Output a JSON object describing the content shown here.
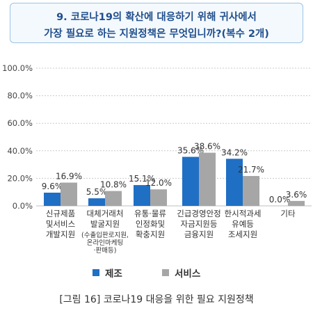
{
  "header": {
    "title_line1": "9. 코로나19의 확산에 대응하기 위해 귀사에서",
    "title_line2": "가장 필요로 하는 지원정책은 무엇입니까?(복수 2개)"
  },
  "caption": "[그림 16] 코로나19 대응을 위한 필요 지원정책",
  "colors": {
    "manufacturing": "#1f6fc5",
    "service": "#a6a6a6",
    "grid": "#c9c9c9"
  },
  "chart_data": {
    "type": "bar",
    "ylim": [
      0,
      100
    ],
    "yticks": [
      "0.0%",
      "20.0%",
      "40.0%",
      "60.0%",
      "80.0%",
      "100.0%"
    ],
    "grid": true,
    "legend_position": "bottom",
    "categories": [
      [
        "신규제품",
        "및서비스",
        "개발지원"
      ],
      [
        "대체거래처",
        "발굴지원",
        "(수출입판로지원,",
        "온라인마케팅",
        "·판매등)"
      ],
      [
        "유통·물류",
        "인정화및",
        "확충지원"
      ],
      [
        "긴급경영안정",
        "자금지원등",
        "금융지원"
      ],
      [
        "한시적과세",
        "유예등",
        "조세지원"
      ],
      [
        "기타"
      ]
    ],
    "series": [
      {
        "name": "제조",
        "values": [
          9.6,
          5.5,
          15.1,
          35.6,
          34.2,
          0.0
        ],
        "labels": [
          "9.6%",
          "5.5%",
          "15.1%",
          "35.6%",
          "34.2%",
          "0.0%"
        ]
      },
      {
        "name": "서비스",
        "values": [
          16.9,
          10.8,
          12.0,
          38.6,
          21.7,
          3.6
        ],
        "labels": [
          "16.9%",
          "10.8%",
          "12.0%",
          "38.6%",
          "21.7%",
          "3.6%"
        ]
      }
    ]
  }
}
